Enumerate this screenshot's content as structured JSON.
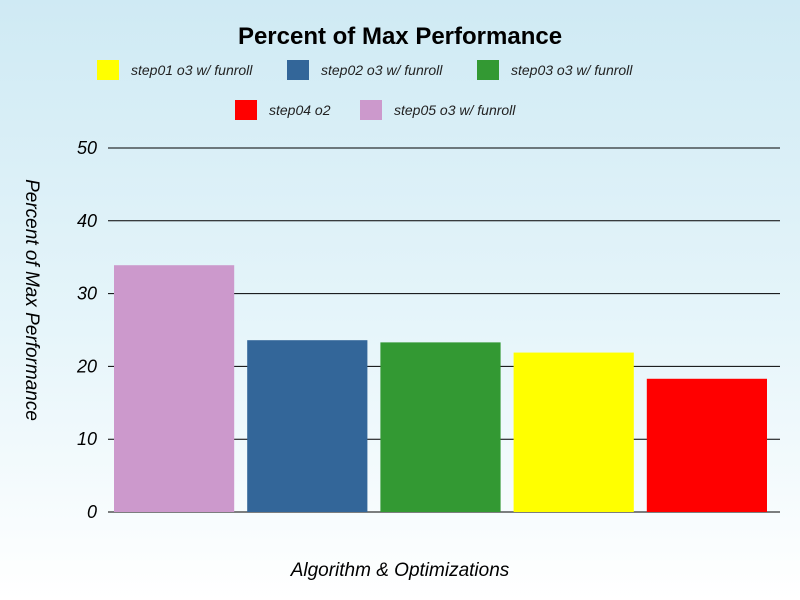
{
  "chart_data": {
    "type": "bar",
    "title": "Percent of Max Performance",
    "xlabel": "Algorithm & Optimizations",
    "ylabel": "Percent of Max Performance",
    "ylim": [
      0,
      50
    ],
    "yticks": [
      0,
      10,
      20,
      30,
      40,
      50
    ],
    "grid": true,
    "legend_position": "top",
    "series": [
      {
        "name": "step01 o3 w/ funroll",
        "color": "#ffff00",
        "value": 21.9
      },
      {
        "name": "step02 o3 w/ funroll",
        "color": "#336699",
        "value": 23.6
      },
      {
        "name": "step03 o3 w/ funroll",
        "color": "#339933",
        "value": 23.3
      },
      {
        "name": "step04 o2",
        "color": "#ff0000",
        "value": 18.3
      },
      {
        "name": "step05 o3 w/ funroll",
        "color": "#cc99cc",
        "value": 33.9
      }
    ],
    "bar_order": [
      4,
      1,
      2,
      0,
      3
    ]
  }
}
